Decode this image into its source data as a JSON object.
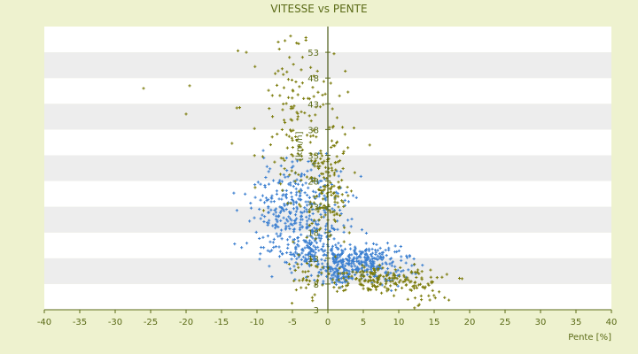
{
  "chart_data": {
    "type": "scatter",
    "title": "VITESSE vs PENTE",
    "xlabel": "Pente [%]",
    "ylabel": "[km/h]",
    "xlim": [
      -40,
      40
    ],
    "ylim": [
      3,
      58
    ],
    "x_ticks": [
      -40,
      -35,
      -30,
      -25,
      -20,
      -15,
      -10,
      -5,
      0,
      5,
      10,
      15,
      20,
      25,
      30,
      35,
      40
    ],
    "y_ticks": [
      3,
      8,
      13,
      18,
      23,
      28,
      33,
      38,
      43,
      48,
      53
    ],
    "y_tick_labels": [
      "3",
      "8",
      "13",
      "18",
      "23",
      "28",
      "33",
      "38",
      "43",
      "48",
      "53"
    ],
    "grid": "horizontal bands",
    "legend": "none",
    "colors": {
      "background": "#eef2cf",
      "band_light": "#ffffff",
      "band_dark": "#ededed",
      "text": "#5a6a16",
      "series_blue": "#3b7fd0",
      "series_olive": "#7b7b0a"
    },
    "series": [
      {
        "color": "#3b7fd0",
        "marker": "+",
        "clusters": [
          {
            "cx": -4,
            "cy": 21,
            "sx": 3.5,
            "sy": 5.0,
            "n": 420
          },
          {
            "cx": 5,
            "cy": 12,
            "sx": 3.2,
            "sy": 2.0,
            "n": 320
          },
          {
            "cx": -2,
            "cy": 14,
            "sx": 1.5,
            "sy": 2.0,
            "n": 80
          },
          {
            "cx": 2,
            "cy": 11,
            "sx": 1.0,
            "sy": 1.5,
            "n": 60
          }
        ]
      },
      {
        "color": "#7b7b0a",
        "marker": "+",
        "clusters": [
          {
            "cx": -4,
            "cy": 38,
            "sx": 3.5,
            "sy": 9.0,
            "n": 170
          },
          {
            "cx": 0,
            "cy": 27,
            "sx": 1.5,
            "sy": 5.0,
            "n": 120
          },
          {
            "cx": 8,
            "cy": 9,
            "sx": 4.0,
            "sy": 1.3,
            "n": 180
          },
          {
            "cx": -3,
            "cy": 10,
            "sx": 2.0,
            "sy": 3.0,
            "n": 40
          },
          {
            "cx": 14,
            "cy": 6,
            "sx": 2.0,
            "sy": 1.2,
            "n": 20
          }
        ],
        "outliers": [
          {
            "x": -26,
            "y": 46
          },
          {
            "x": -19.5,
            "y": 46.5
          },
          {
            "x": -20,
            "y": 41
          },
          {
            "x": -11.5,
            "y": 53
          },
          {
            "x": -7,
            "y": 55
          }
        ]
      }
    ]
  }
}
